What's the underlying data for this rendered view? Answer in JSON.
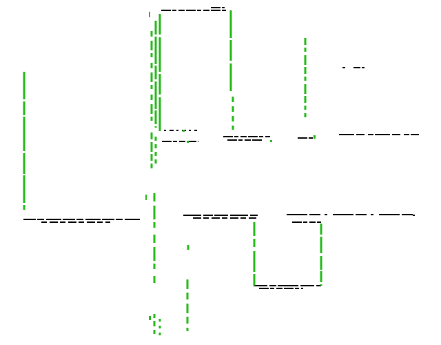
{
  "colors": {
    "background": "#ffffff",
    "horizontal_strokes": "#000000",
    "vertical_strokes": "#22b814"
  }
}
